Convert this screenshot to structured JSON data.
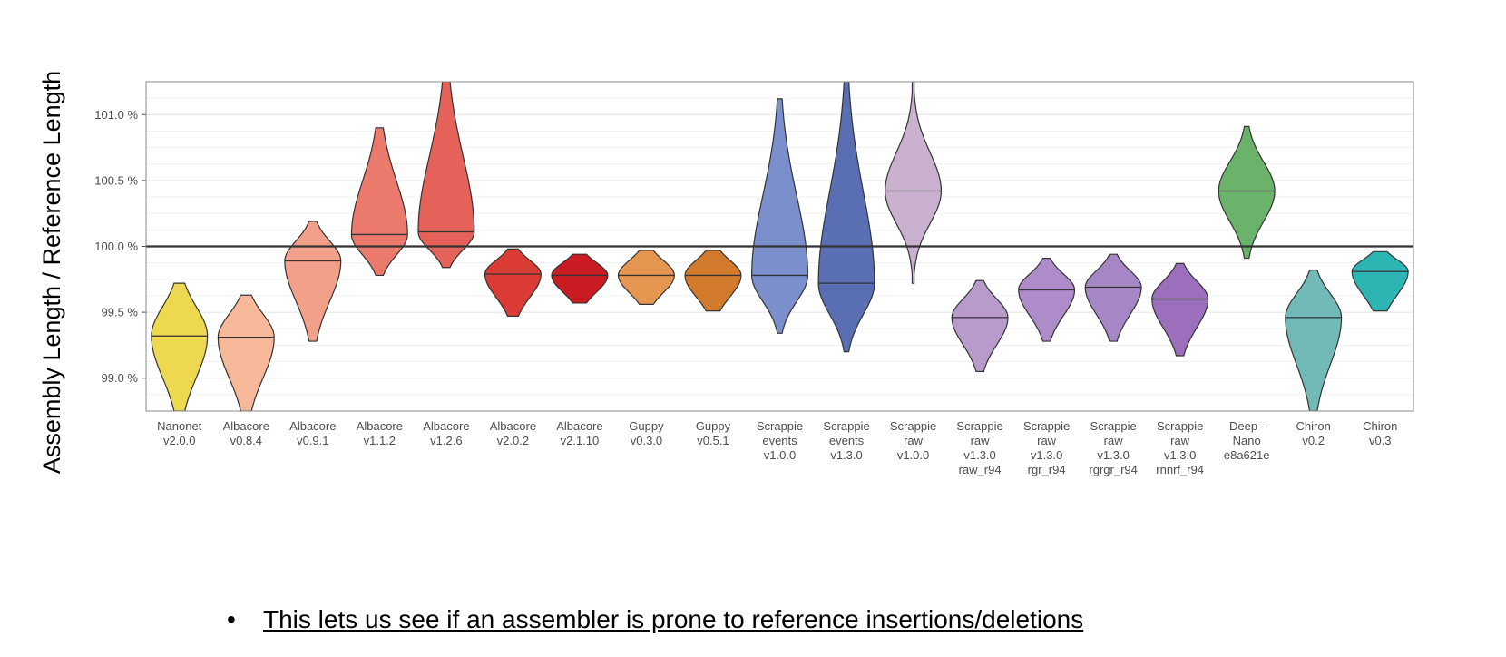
{
  "chart_data": {
    "type": "violin",
    "ylabel": "Assembly Length / Reference Length",
    "xlabel": "",
    "ylim": [
      98.75,
      101.25
    ],
    "yticks": [
      "99.0 %",
      "99.5 %",
      "100.0 %",
      "100.5 %",
      "101.0 %"
    ],
    "ytick_values": [
      99.0,
      99.5,
      100.0,
      100.5,
      101.0
    ],
    "reference_line": 100.0,
    "grid": true,
    "categories": [
      {
        "label": [
          "Nanonet",
          "v2.0.0"
        ],
        "color": "#EDD84F",
        "median": 99.32,
        "lo": 98.75,
        "hi": 99.72,
        "spread": 0.55
      },
      {
        "label": [
          "Albacore",
          "v0.8.4"
        ],
        "color": "#F8B99A",
        "median": 99.31,
        "lo": 98.75,
        "hi": 99.63,
        "spread": 0.55
      },
      {
        "label": [
          "Albacore",
          "v0.9.1"
        ],
        "color": "#F3A08A",
        "median": 99.89,
        "lo": 99.28,
        "hi": 100.19,
        "spread": 0.5
      },
      {
        "label": [
          "Albacore",
          "v1.1.2"
        ],
        "color": "#EB7A6C",
        "median": 100.09,
        "lo": 99.78,
        "hi": 100.9,
        "spread": 0.5
      },
      {
        "label": [
          "Albacore",
          "v1.2.6"
        ],
        "color": "#E4625A",
        "median": 100.11,
        "lo": 99.84,
        "hi": 101.25,
        "spread": 0.5
      },
      {
        "label": [
          "Albacore",
          "v2.0.2"
        ],
        "color": "#DA3B34",
        "median": 99.79,
        "lo": 99.47,
        "hi": 99.98,
        "spread": 0.55
      },
      {
        "label": [
          "Albacore",
          "v2.1.10"
        ],
        "color": "#CB1B22",
        "median": 99.78,
        "lo": 99.57,
        "hi": 99.94,
        "spread": 0.6
      },
      {
        "label": [
          "Guppy",
          "v0.3.0"
        ],
        "color": "#E59650",
        "median": 99.78,
        "lo": 99.56,
        "hi": 99.97,
        "spread": 0.6
      },
      {
        "label": [
          "Guppy",
          "v0.5.1"
        ],
        "color": "#D27A2C",
        "median": 99.78,
        "lo": 99.51,
        "hi": 99.97,
        "spread": 0.6
      },
      {
        "label": [
          "Scrappie",
          "events",
          "v1.0.0"
        ],
        "color": "#7A8FCC",
        "median": 99.78,
        "lo": 99.34,
        "hi": 101.12,
        "spread": 0.45
      },
      {
        "label": [
          "Scrappie",
          "events",
          "v1.3.0"
        ],
        "color": "#5A6EB4",
        "median": 99.72,
        "lo": 99.2,
        "hi": 101.25,
        "spread": 0.45
      },
      {
        "label": [
          "Scrappie",
          "raw",
          "v1.0.0"
        ],
        "color": "#C9B1CF",
        "median": 100.42,
        "lo": 99.72,
        "hi": 101.25,
        "spread": 0.35
      },
      {
        "label": [
          "Scrappie",
          "raw",
          "v1.3.0",
          "raw_r94"
        ],
        "color": "#B89ACB",
        "median": 99.46,
        "lo": 99.05,
        "hi": 99.74,
        "spread": 0.5
      },
      {
        "label": [
          "Scrappie",
          "raw",
          "v1.3.0",
          "rgr_r94"
        ],
        "color": "#AD8CC9",
        "median": 99.67,
        "lo": 99.28,
        "hi": 99.91,
        "spread": 0.5
      },
      {
        "label": [
          "Scrappie",
          "raw",
          "v1.3.0",
          "rgrgr_r94"
        ],
        "color": "#A686C4",
        "median": 99.69,
        "lo": 99.28,
        "hi": 99.94,
        "spread": 0.5
      },
      {
        "label": [
          "Scrappie",
          "raw",
          "v1.3.0",
          "rnnrf_r94"
        ],
        "color": "#9C6FBC",
        "median": 99.6,
        "lo": 99.17,
        "hi": 99.87,
        "spread": 0.5
      },
      {
        "label": [
          "Deep–",
          "Nano",
          "e8a621e"
        ],
        "color": "#6BB36A",
        "median": 100.42,
        "lo": 99.91,
        "hi": 100.91,
        "spread": 0.45
      },
      {
        "label": [
          "Chiron",
          "v0.2"
        ],
        "color": "#72BAB7",
        "median": 99.46,
        "lo": 98.75,
        "hi": 99.82,
        "spread": 0.5
      },
      {
        "label": [
          "Chiron",
          "v0.3"
        ],
        "color": "#2DB5B3",
        "median": 99.81,
        "lo": 99.51,
        "hi": 99.96,
        "spread": 0.6
      }
    ]
  },
  "bullet": {
    "mark": "•",
    "text": "This lets us see if an assembler is prone to reference insertions/deletions"
  }
}
